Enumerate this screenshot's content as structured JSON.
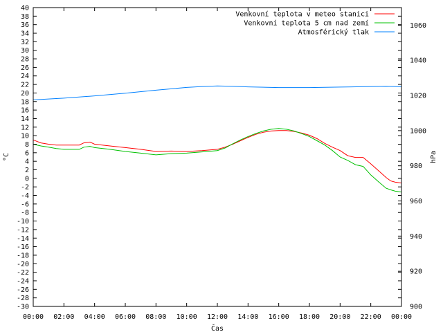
{
  "chart_data": {
    "type": "line",
    "xlabel": "Čas",
    "ylabel": "°C",
    "y2label": "hPa",
    "x_ticks": [
      "00:00",
      "02:00",
      "04:00",
      "06:00",
      "08:00",
      "10:00",
      "12:00",
      "14:00",
      "16:00",
      "18:00",
      "20:00",
      "22:00",
      "00:00"
    ],
    "x_range_hours": [
      0,
      24
    ],
    "ylim": [
      -30,
      40
    ],
    "y_tick_step": 2,
    "y2lim": [
      900,
      1070
    ],
    "y2_ticks": [
      900,
      920,
      940,
      960,
      980,
      1000,
      1020,
      1040,
      1060
    ],
    "legend_position": "top-right",
    "grid": false,
    "series": [
      {
        "name": "Venkovní teplota v meteo stanici",
        "axis": "left",
        "color": "#ff0000",
        "x": [
          0,
          0.5,
          1,
          1.5,
          2,
          2.5,
          3,
          3.3,
          3.7,
          4,
          5,
          6,
          7,
          8,
          9,
          10,
          11,
          12,
          12.5,
          13,
          13.5,
          14,
          14.5,
          15,
          15.5,
          16,
          16.5,
          17,
          17.5,
          18,
          18.5,
          19,
          19.5,
          20,
          20.5,
          21,
          21.5,
          22,
          22.5,
          23,
          23.3,
          23.6,
          24
        ],
        "values": [
          9,
          8.3,
          8,
          7.8,
          7.8,
          7.8,
          7.8,
          8.3,
          8.5,
          8,
          7.6,
          7.2,
          6.8,
          6.3,
          6.4,
          6.3,
          6.5,
          6.8,
          7.3,
          8,
          8.8,
          9.6,
          10.3,
          10.8,
          11.1,
          11.2,
          11.2,
          11,
          10.6,
          10.1,
          9.3,
          8.2,
          7.3,
          6.5,
          5.3,
          4.9,
          4.9,
          3.4,
          1.8,
          0.2,
          -0.6,
          -0.9,
          -1.1
        ]
      },
      {
        "name": "Venkovní teplota 5 cm nad zemí",
        "axis": "left",
        "color": "#00c000",
        "x": [
          0,
          0.5,
          1,
          1.5,
          2,
          2.5,
          3,
          3.3,
          3.7,
          4,
          5,
          6,
          7,
          8,
          9,
          10,
          11,
          12,
          12.5,
          13,
          13.5,
          14,
          14.5,
          15,
          15.5,
          16,
          16.5,
          17,
          17.5,
          18,
          18.5,
          19,
          19.5,
          20,
          20.5,
          21,
          21.5,
          22,
          22.5,
          23,
          23.3,
          23.6,
          24
        ],
        "values": [
          8,
          7.6,
          7.3,
          7,
          6.8,
          6.8,
          6.8,
          7.3,
          7.5,
          7.2,
          6.8,
          6.3,
          5.9,
          5.5,
          5.8,
          5.9,
          6.2,
          6.5,
          7.1,
          8.1,
          9,
          9.8,
          10.5,
          11.1,
          11.5,
          11.7,
          11.5,
          11.1,
          10.5,
          9.8,
          8.8,
          7.8,
          6.5,
          5,
          4.2,
          3.2,
          2.8,
          0.8,
          -0.8,
          -2.3,
          -2.7,
          -3,
          -3.2
        ]
      },
      {
        "name": "Atmosférický tlak",
        "axis": "right",
        "color": "#0080ff",
        "x": [
          0,
          2,
          4,
          6,
          8,
          10,
          11,
          12,
          13,
          14,
          16,
          18,
          20,
          22,
          23,
          24
        ],
        "values": [
          1017.5,
          1018.5,
          1019.8,
          1021.3,
          1023,
          1024.6,
          1025.1,
          1025.4,
          1025.2,
          1024.9,
          1024.5,
          1024.5,
          1024.8,
          1025.1,
          1025.2,
          1025
        ]
      }
    ]
  }
}
